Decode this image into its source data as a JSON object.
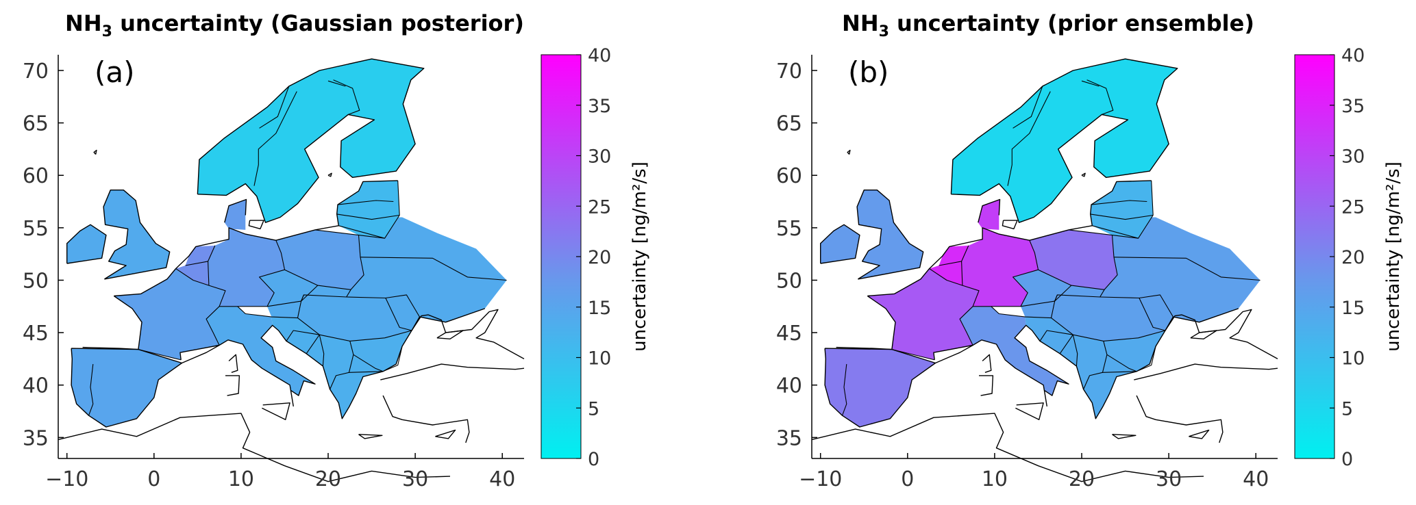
{
  "chart_data": [
    {
      "type": "heatmap",
      "panel_label": "(a)",
      "title": {
        "species": "NH",
        "subscript": "3",
        "rest": " uncertainty (Gaussian posterior)"
      },
      "x_ticks": [
        -10,
        0,
        10,
        20,
        30,
        40
      ],
      "y_ticks": [
        35,
        40,
        45,
        50,
        55,
        60,
        65,
        70
      ],
      "xlim": [
        -11,
        42.5
      ],
      "ylim": [
        33,
        71.5
      ],
      "colorbar": {
        "label": "uncertainty [ng/m²/s]",
        "ticks": [
          0,
          5,
          10,
          15,
          20,
          25,
          30,
          35,
          40
        ],
        "range": [
          0,
          40
        ],
        "colors": [
          "#00f0f0",
          "#6a96ec",
          "#ff00ff"
        ]
      },
      "regions": [
        {
          "name": "Iberia",
          "value": 15
        },
        {
          "name": "France",
          "value": 16
        },
        {
          "name": "Benelux",
          "value": 19
        },
        {
          "name": "Germany",
          "value": 17
        },
        {
          "name": "Poland",
          "value": 16
        },
        {
          "name": "Eastern Europe",
          "value": 14
        },
        {
          "name": "Italy",
          "value": 14
        },
        {
          "name": "Balkans",
          "value": 13
        },
        {
          "name": "British Isles",
          "value": 14
        },
        {
          "name": "Scandinavia",
          "value": 7
        },
        {
          "name": "Baltics",
          "value": 11
        }
      ]
    },
    {
      "type": "heatmap",
      "panel_label": "(b)",
      "title": {
        "species": "NH",
        "subscript": "3",
        "rest": " uncertainty (prior ensemble)"
      },
      "x_ticks": [
        -10,
        0,
        10,
        20,
        30,
        40
      ],
      "y_ticks": [
        35,
        40,
        45,
        50,
        55,
        60,
        65,
        70
      ],
      "xlim": [
        -11,
        42.5
      ],
      "ylim": [
        33,
        71.5
      ],
      "colorbar": {
        "label": "uncertainty [ng/m²/s]",
        "ticks": [
          0,
          5,
          10,
          15,
          20,
          25,
          30,
          35,
          40
        ],
        "range": [
          0,
          40
        ],
        "colors": [
          "#00f0f0",
          "#6a96ec",
          "#ff00ff"
        ]
      },
      "regions": [
        {
          "name": "Iberia",
          "value": 22
        },
        {
          "name": "France",
          "value": 27
        },
        {
          "name": "Benelux",
          "value": 34
        },
        {
          "name": "Germany",
          "value": 31
        },
        {
          "name": "Poland",
          "value": 23
        },
        {
          "name": "Eastern Europe",
          "value": 16
        },
        {
          "name": "Italy",
          "value": 18
        },
        {
          "name": "Balkans",
          "value": 14
        },
        {
          "name": "British Isles",
          "value": 17
        },
        {
          "name": "Scandinavia",
          "value": 5
        },
        {
          "name": "Baltics",
          "value": 12
        }
      ]
    }
  ]
}
